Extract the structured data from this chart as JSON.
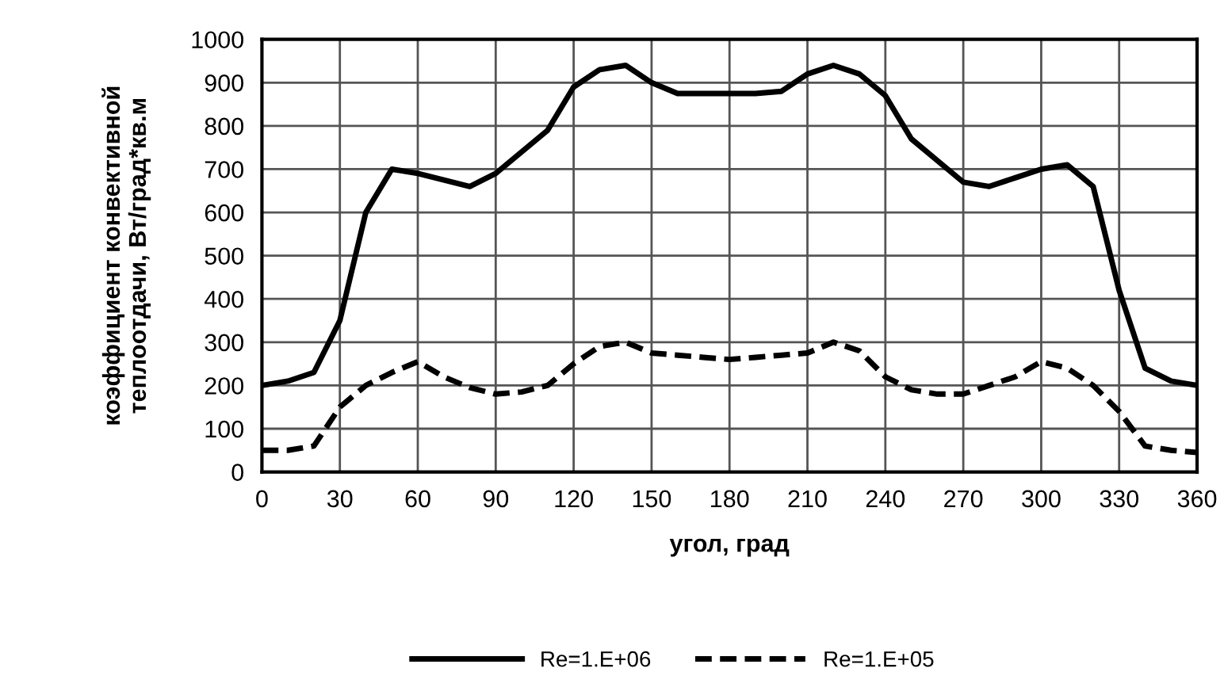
{
  "chart_data": {
    "type": "line",
    "xlabel": "угол, град",
    "ylabel": "коэффициент конвективной\nтеплоотдачи, Вт/град*кв.м",
    "x": [
      0,
      10,
      20,
      30,
      40,
      50,
      60,
      70,
      80,
      90,
      100,
      110,
      120,
      130,
      140,
      150,
      160,
      170,
      180,
      190,
      200,
      210,
      220,
      230,
      240,
      250,
      260,
      270,
      280,
      290,
      300,
      310,
      320,
      330,
      340,
      350,
      360
    ],
    "series": [
      {
        "name": "Re=1.E+06",
        "color": "#000000",
        "line_style": "solid",
        "values": [
          200,
          210,
          230,
          350,
          600,
          700,
          690,
          675,
          660,
          690,
          740,
          790,
          890,
          930,
          940,
          900,
          875,
          875,
          875,
          875,
          880,
          920,
          940,
          920,
          870,
          770,
          720,
          670,
          660,
          680,
          700,
          710,
          660,
          420,
          240,
          210,
          200
        ]
      },
      {
        "name": "Re=1.E+05",
        "color": "#000000",
        "line_style": "dashed",
        "values": [
          50,
          50,
          60,
          150,
          200,
          230,
          255,
          220,
          195,
          180,
          185,
          200,
          250,
          290,
          300,
          275,
          270,
          265,
          260,
          265,
          270,
          275,
          300,
          280,
          220,
          190,
          180,
          180,
          200,
          220,
          255,
          240,
          200,
          140,
          60,
          50,
          45
        ]
      }
    ],
    "xlim": [
      0,
      360
    ],
    "xticks": [
      0,
      30,
      60,
      90,
      120,
      150,
      180,
      210,
      240,
      270,
      300,
      330,
      360
    ],
    "ylim": [
      0,
      1000
    ],
    "yticks": [
      0,
      100,
      200,
      300,
      400,
      500,
      600,
      700,
      800,
      900,
      1000
    ],
    "grid": true,
    "legend": "bottom",
    "marker": "none"
  }
}
